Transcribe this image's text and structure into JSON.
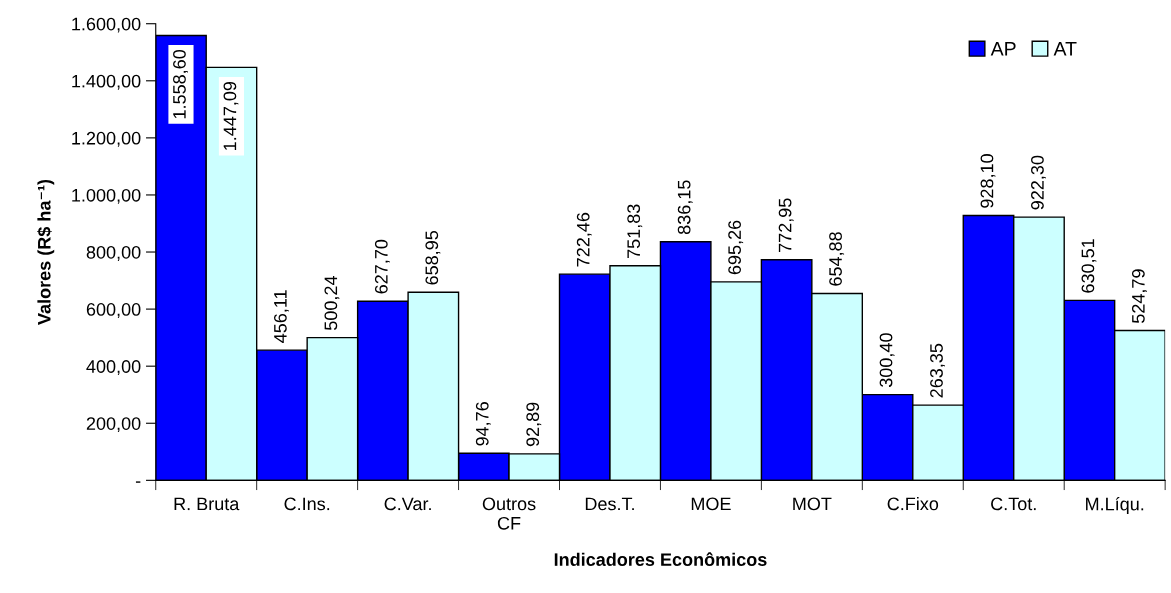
{
  "chart_data": {
    "type": "bar",
    "xlabel": "Indicadores Econômicos",
    "ylabel": "Valores (R$ ha⁻¹)",
    "categories": [
      "R. Bruta",
      "C.Ins.",
      "C.Var.",
      "Outros\nCF",
      "Des.T.",
      "MOE",
      "MOT",
      "C.Fixo",
      "C.Tot.",
      "M.Líqu."
    ],
    "series": [
      {
        "name": "AP",
        "color": "#0000ff",
        "values": [
          1558.6,
          456.11,
          627.7,
          94.76,
          722.46,
          836.15,
          772.95,
          300.4,
          928.1,
          630.51
        ],
        "value_labels": [
          "1.558,60",
          "456,11",
          "627,70",
          "94,76",
          "722,46",
          "836,15",
          "772,95",
          "300,40",
          "928,10",
          "630,51"
        ]
      },
      {
        "name": "AT",
        "color": "#ccffff",
        "values": [
          1447.09,
          500.24,
          658.95,
          92.89,
          751.83,
          695.26,
          654.88,
          263.35,
          922.3,
          524.79
        ],
        "value_labels": [
          "1.447,09",
          "500,24",
          "658,95",
          "92,89",
          "751,83",
          "695,26",
          "654,88",
          "263,35",
          "922,30",
          "524,79"
        ]
      }
    ],
    "ylim": [
      0,
      1600
    ],
    "yticks": [
      {
        "value": 0,
        "label": "-"
      },
      {
        "value": 200,
        "label": "200,00"
      },
      {
        "value": 400,
        "label": "400,00"
      },
      {
        "value": 600,
        "label": "600,00"
      },
      {
        "value": 800,
        "label": "800,00"
      },
      {
        "value": 1000,
        "label": "1.000,00"
      },
      {
        "value": 1200,
        "label": "1.200,00"
      },
      {
        "value": 1400,
        "label": "1.400,00"
      },
      {
        "value": 1600,
        "label": "1.600,00"
      }
    ],
    "grid": false,
    "legend": "top right"
  }
}
